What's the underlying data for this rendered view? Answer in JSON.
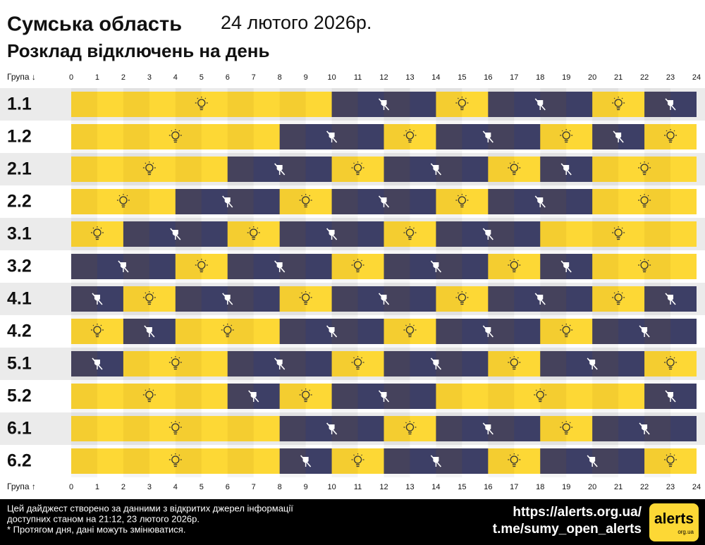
{
  "chart_data": {
    "type": "schedule",
    "title": "Сумська область",
    "date": "24 лютого 2026р.",
    "subtitle": "Розклад відключень на день",
    "axis_label_top": "Група ↓",
    "axis_label_bottom": "Група ↑",
    "xlim": [
      0,
      24
    ],
    "xticks": [
      0,
      1,
      2,
      3,
      4,
      5,
      6,
      7,
      8,
      9,
      10,
      11,
      12,
      13,
      14,
      15,
      16,
      17,
      18,
      19,
      20,
      21,
      22,
      23,
      24
    ],
    "on_color": "#fdd835",
    "off_color": "#3d3f66",
    "groups": [
      {
        "name": "1.1",
        "off": [
          [
            10,
            14
          ],
          [
            16,
            20
          ],
          [
            22,
            24
          ]
        ]
      },
      {
        "name": "1.2",
        "off": [
          [
            8,
            12
          ],
          [
            14,
            18
          ],
          [
            20,
            22
          ]
        ]
      },
      {
        "name": "2.1",
        "off": [
          [
            6,
            10
          ],
          [
            12,
            16
          ],
          [
            18,
            20
          ]
        ]
      },
      {
        "name": "2.2",
        "off": [
          [
            4,
            8
          ],
          [
            10,
            14
          ],
          [
            16,
            20
          ]
        ]
      },
      {
        "name": "3.1",
        "off": [
          [
            2,
            6
          ],
          [
            8,
            12
          ],
          [
            14,
            18
          ]
        ]
      },
      {
        "name": "3.2",
        "off": [
          [
            0,
            4
          ],
          [
            6,
            10
          ],
          [
            12,
            16
          ],
          [
            18,
            20
          ]
        ]
      },
      {
        "name": "4.1",
        "off": [
          [
            0,
            2
          ],
          [
            4,
            8
          ],
          [
            10,
            14
          ],
          [
            16,
            20
          ],
          [
            22,
            24
          ]
        ]
      },
      {
        "name": "4.2",
        "off": [
          [
            2,
            4
          ],
          [
            8,
            12
          ],
          [
            14,
            18
          ],
          [
            20,
            24
          ]
        ]
      },
      {
        "name": "5.1",
        "off": [
          [
            0,
            2
          ],
          [
            6,
            10
          ],
          [
            12,
            16
          ],
          [
            18,
            22
          ]
        ]
      },
      {
        "name": "5.2",
        "off": [
          [
            6,
            8
          ],
          [
            10,
            14
          ],
          [
            22,
            24
          ]
        ]
      },
      {
        "name": "6.1",
        "off": [
          [
            8,
            12
          ],
          [
            14,
            18
          ],
          [
            20,
            24
          ]
        ]
      },
      {
        "name": "6.2",
        "off": [
          [
            8,
            10
          ],
          [
            12,
            16
          ],
          [
            18,
            22
          ]
        ]
      }
    ]
  },
  "footer": {
    "lines": [
      "Цей дайджест створено за данними з відкритих джерел інформації",
      "доступних станом на 21:12, 23 лютого 2026р.",
      "* Протягом дня, дані можуть змінюватися."
    ],
    "site": "https://alerts.org.ua/",
    "telegram": "t.me/sumy_open_alerts",
    "logo": "alerts",
    "logo_sub": "org.ua"
  }
}
